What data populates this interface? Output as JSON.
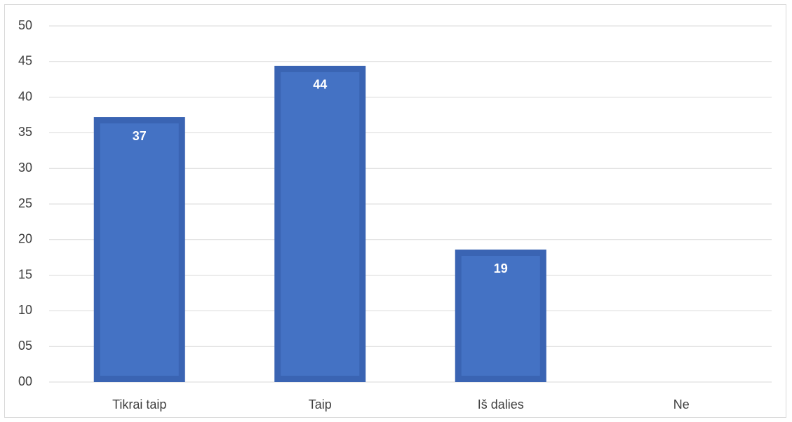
{
  "chart_data": {
    "type": "bar",
    "categories": [
      "Tikrai taip",
      "Taip",
      "Iš dalies",
      "Ne"
    ],
    "values": [
      37.2,
      44.4,
      18.6,
      0
    ],
    "data_labels": [
      "37",
      "44",
      "19",
      ""
    ],
    "ytick_labels": [
      "00",
      "05",
      "10",
      "15",
      "20",
      "25",
      "30",
      "35",
      "40",
      "45",
      "50"
    ],
    "ylim": [
      0,
      50
    ],
    "ytick_step": 5,
    "grid": true,
    "legend": "none",
    "colors": {
      "bar_fill": "#4472c4",
      "bar_border": "#3a64b3",
      "grid": "#d9d9d9",
      "axis_text": "#404040"
    }
  }
}
